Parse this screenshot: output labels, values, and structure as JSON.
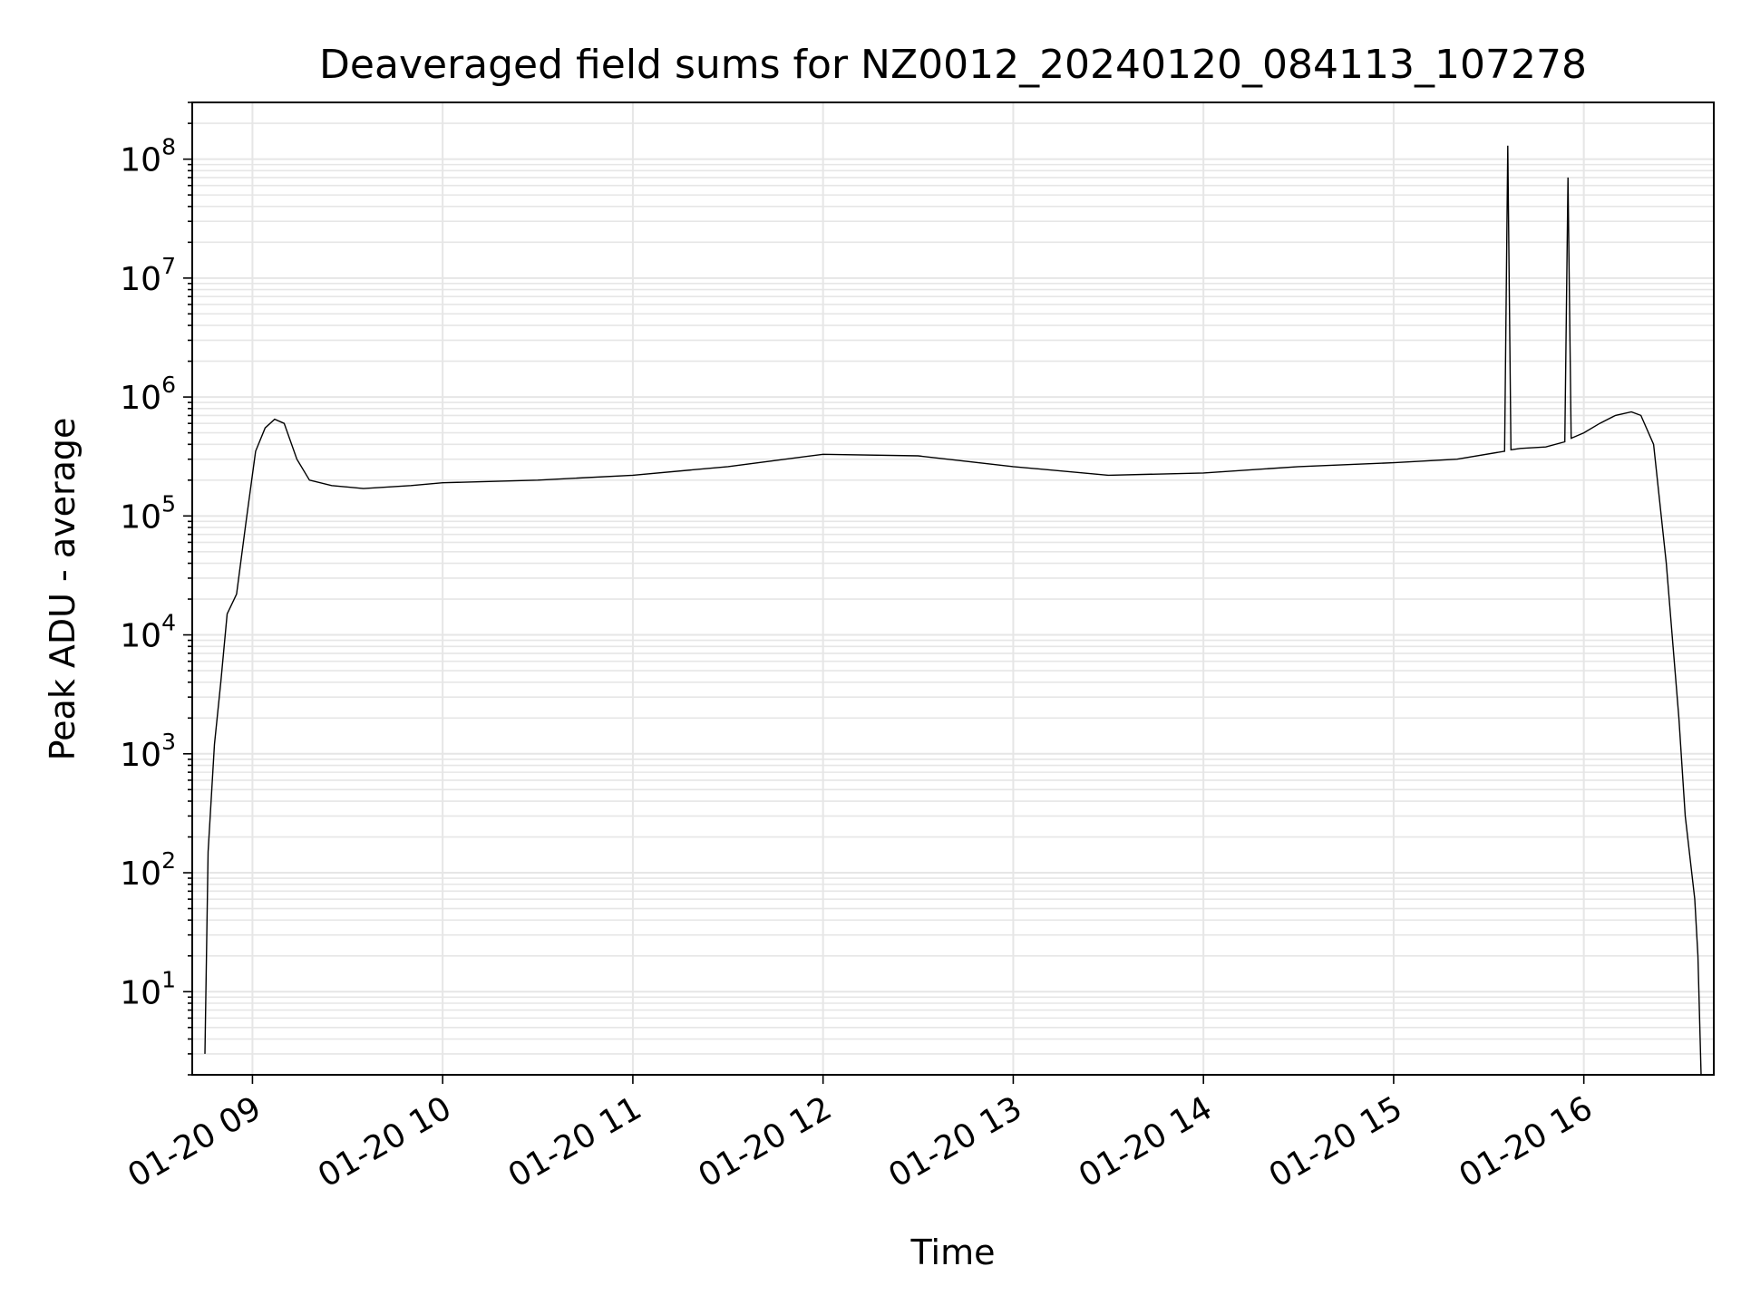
{
  "chart_data": {
    "type": "line",
    "title": "Deaveraged field sums for NZ0012_20240120_084113_107278",
    "xlabel": "Time",
    "ylabel": "Peak ADU - average",
    "yscale": "log",
    "xlim": [
      "2024-01-20 08:41",
      "2024-01-20 16:41"
    ],
    "ylim": [
      2,
      300000000
    ],
    "grid": true,
    "line_color": "#000000",
    "grid_color": "#e6e6e6",
    "x_ticks": [
      "2024-01-20 09:00",
      "2024-01-20 10:00",
      "2024-01-20 11:00",
      "2024-01-20 12:00",
      "2024-01-20 13:00",
      "2024-01-20 14:00",
      "2024-01-20 15:00",
      "2024-01-20 16:00"
    ],
    "x_tick_labels": [
      "01-20 09",
      "01-20 10",
      "01-20 11",
      "01-20 12",
      "01-20 13",
      "01-20 14",
      "01-20 15",
      "01-20 16"
    ],
    "y_ticks": [
      10,
      100,
      1000,
      10000,
      100000,
      1000000,
      10000000,
      100000000
    ],
    "y_tick_labels": [
      {
        "base": "10",
        "exp": "1"
      },
      {
        "base": "10",
        "exp": "2"
      },
      {
        "base": "10",
        "exp": "3"
      },
      {
        "base": "10",
        "exp": "4"
      },
      {
        "base": "10",
        "exp": "5"
      },
      {
        "base": "10",
        "exp": "6"
      },
      {
        "base": "10",
        "exp": "7"
      },
      {
        "base": "10",
        "exp": "8"
      }
    ],
    "series": [
      {
        "x": [
          "2024-01-20 08:45",
          "2024-01-20 08:46",
          "2024-01-20 08:48",
          "2024-01-20 08:50",
          "2024-01-20 08:52",
          "2024-01-20 08:55",
          "2024-01-20 08:58",
          "2024-01-20 09:01",
          "2024-01-20 09:04",
          "2024-01-20 09:07",
          "2024-01-20 09:10",
          "2024-01-20 09:14",
          "2024-01-20 09:18",
          "2024-01-20 09:25",
          "2024-01-20 09:35",
          "2024-01-20 09:50",
          "2024-01-20 10:00",
          "2024-01-20 10:30",
          "2024-01-20 11:00",
          "2024-01-20 11:30",
          "2024-01-20 12:00",
          "2024-01-20 12:30",
          "2024-01-20 13:00",
          "2024-01-20 13:30",
          "2024-01-20 14:00",
          "2024-01-20 14:30",
          "2024-01-20 15:00",
          "2024-01-20 15:20",
          "2024-01-20 15:35",
          "2024-01-20 15:36",
          "2024-01-20 15:37",
          "2024-01-20 15:40",
          "2024-01-20 15:48",
          "2024-01-20 15:54",
          "2024-01-20 15:55",
          "2024-01-20 15:56",
          "2024-01-20 16:00",
          "2024-01-20 16:05",
          "2024-01-20 16:10",
          "2024-01-20 16:15",
          "2024-01-20 16:18",
          "2024-01-20 16:22",
          "2024-01-20 16:26",
          "2024-01-20 16:30",
          "2024-01-20 16:32",
          "2024-01-20 16:35",
          "2024-01-20 16:36",
          "2024-01-20 16:37"
        ],
        "y": [
          3,
          150,
          1200,
          4000,
          15000,
          22000,
          90000,
          350000,
          550000,
          650000,
          600000,
          300000,
          200000,
          180000,
          170000,
          180000,
          190000,
          200000,
          220000,
          260000,
          330000,
          320000,
          260000,
          220000,
          230000,
          260000,
          280000,
          300000,
          350000,
          130000000,
          360000,
          370000,
          380000,
          420000,
          70000000,
          450000,
          500000,
          600000,
          700000,
          750000,
          700000,
          400000,
          40000,
          2000,
          300,
          60,
          20,
          2
        ]
      }
    ]
  }
}
